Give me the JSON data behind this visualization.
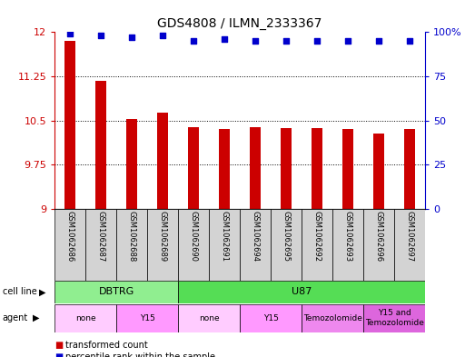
{
  "title": "GDS4808 / ILMN_2333367",
  "samples": [
    "GSM1062686",
    "GSM1062687",
    "GSM1062688",
    "GSM1062689",
    "GSM1062690",
    "GSM1062691",
    "GSM1062694",
    "GSM1062695",
    "GSM1062692",
    "GSM1062693",
    "GSM1062696",
    "GSM1062697"
  ],
  "bar_values": [
    11.85,
    11.18,
    10.53,
    10.63,
    10.38,
    10.35,
    10.38,
    10.37,
    10.37,
    10.36,
    10.28,
    10.35
  ],
  "dot_values": [
    99,
    98,
    97,
    98,
    95,
    96,
    95,
    95,
    95,
    95,
    95,
    95
  ],
  "bar_color": "#cc0000",
  "dot_color": "#0000cc",
  "ylim_left": [
    9,
    12
  ],
  "ylim_right": [
    0,
    100
  ],
  "yticks_left": [
    9,
    9.75,
    10.5,
    11.25,
    12
  ],
  "yticks_right": [
    0,
    25,
    50,
    75,
    100
  ],
  "cell_line_groups": [
    {
      "label": "DBTRG",
      "start": 0,
      "end": 4,
      "color": "#90ee90"
    },
    {
      "label": "U87",
      "start": 4,
      "end": 12,
      "color": "#55dd55"
    }
  ],
  "agent_groups": [
    {
      "label": "none",
      "start": 0,
      "end": 2,
      "color": "#ffccff"
    },
    {
      "label": "Y15",
      "start": 2,
      "end": 4,
      "color": "#ff99ff"
    },
    {
      "label": "none",
      "start": 4,
      "end": 6,
      "color": "#ffccff"
    },
    {
      "label": "Y15",
      "start": 6,
      "end": 8,
      "color": "#ff99ff"
    },
    {
      "label": "Temozolomide",
      "start": 8,
      "end": 10,
      "color": "#ee88ee"
    },
    {
      "label": "Y15 and\nTemozolomide",
      "start": 10,
      "end": 12,
      "color": "#dd66dd"
    }
  ],
  "legend_items": [
    {
      "label": "transformed count",
      "color": "#cc0000"
    },
    {
      "label": "percentile rank within the sample",
      "color": "#0000cc"
    }
  ],
  "background_color": "#ffffff",
  "tick_area_bg": "#d3d3d3",
  "bar_width": 0.35
}
